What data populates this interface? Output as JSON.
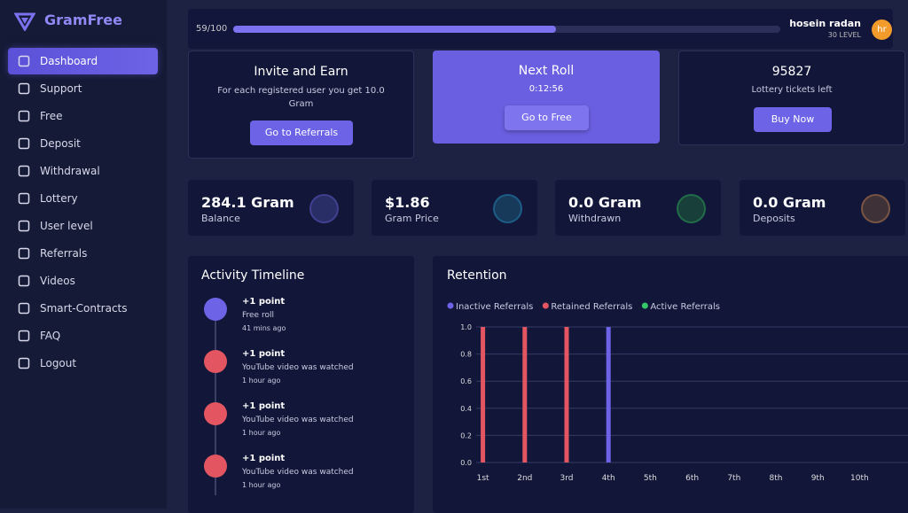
{
  "brand": "GramFree",
  "menu": [
    "Dashboard",
    "Support",
    "Free",
    "Deposit",
    "Withdrawal",
    "Lottery",
    "User level",
    "Referrals",
    "Videos",
    "Smart-Contracts",
    "FAQ",
    "Logout"
  ],
  "topbar": {
    "progress": {
      "label": "59/100",
      "value": 59,
      "max": 100
    },
    "user": "hosein radan",
    "level": "30 LEVEL",
    "avatar": "hr"
  },
  "cards": {
    "invite": {
      "title": "Invite and Earn",
      "text": "For each registered user you get 10.0 Gram",
      "button": "Go to Referrals"
    },
    "roll": {
      "title": "Next Roll",
      "time": "0:12:56",
      "button": "Go to Free"
    },
    "lottery": {
      "title": "95827",
      "text": "Lottery tickets left",
      "button": "Buy Now"
    }
  },
  "stats": [
    {
      "value": "284.1 Gram",
      "label": "Balance"
    },
    {
      "value": "$1.86",
      "label": "Gram Price"
    },
    {
      "value": "0.0 Gram",
      "label": "Withdrawn"
    },
    {
      "value": "0.0 Gram",
      "label": "Deposits"
    }
  ],
  "timeline": {
    "title": "Activity Timeline",
    "items": [
      {
        "title": "+1 point",
        "text": "Free roll",
        "time": "41 mins ago"
      },
      {
        "title": "+1 point",
        "text": "YouTube video was watched",
        "time": "1 hour ago"
      },
      {
        "title": "+1 point",
        "text": "YouTube video was watched",
        "time": "1 hour ago"
      },
      {
        "title": "+1 point",
        "text": "YouTube video was watched",
        "time": "1 hour ago"
      }
    ]
  },
  "chart_data": {
    "type": "bar",
    "title": "Retention",
    "categories": [
      "1st",
      "2nd",
      "3rd",
      "4th",
      "5th",
      "6th",
      "7th",
      "8th",
      "9th",
      "10th"
    ],
    "series": [
      {
        "name": "Inactive Referrals",
        "color": "#6c63e6",
        "values": [
          0,
          0,
          0,
          1,
          0,
          0,
          0,
          0,
          0,
          0
        ]
      },
      {
        "name": "Retained Referrals",
        "color": "#e25561",
        "values": [
          1,
          1,
          1,
          0,
          0,
          0,
          0,
          0,
          0,
          0
        ]
      },
      {
        "name": "Active Referrals",
        "color": "#33c76a",
        "values": [
          0,
          0,
          0,
          0,
          0,
          0,
          0,
          0,
          0,
          0
        ]
      }
    ],
    "ylim": [
      0,
      1
    ],
    "yticks": [
      {
        "value": 0,
        "label": "0.0"
      },
      {
        "value": 0.2,
        "label": "0.2"
      },
      {
        "value": 0.4,
        "label": "0.4"
      },
      {
        "value": 0.6,
        "label": "0.6"
      },
      {
        "value": 0.8,
        "label": "0.8"
      },
      {
        "value": 1,
        "label": "1.0"
      }
    ],
    "grid": true,
    "legend": "top"
  }
}
